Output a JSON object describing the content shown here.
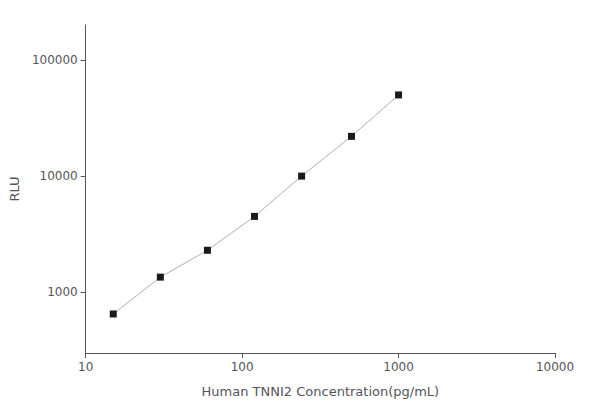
{
  "chart_data": {
    "type": "line",
    "xlabel": "Human TNNI2 Concentration(pg/mL)",
    "ylabel": "RLU",
    "x": [
      15,
      30,
      60,
      120,
      240,
      500,
      1000
    ],
    "series": [
      {
        "values": [
          650,
          1350,
          2300,
          4500,
          10000,
          22000,
          50000
        ],
        "color": "#b0b0b0",
        "colors": [
          "#1a1a1a",
          "#1a1a1a",
          "#1a1a1a",
          "#1a1a1a",
          "#1a1a1a",
          "#1a1a1a",
          "#1a1a1a"
        ],
        "marker": "square",
        "line_style": "solid"
      }
    ],
    "log": true,
    "xlim": [
      10,
      10000
    ],
    "ylim": [
      300,
      200000
    ],
    "xticks": [
      10,
      100,
      1000,
      10000
    ],
    "yticks": [
      1000,
      10000,
      100000
    ],
    "grid": false
  }
}
